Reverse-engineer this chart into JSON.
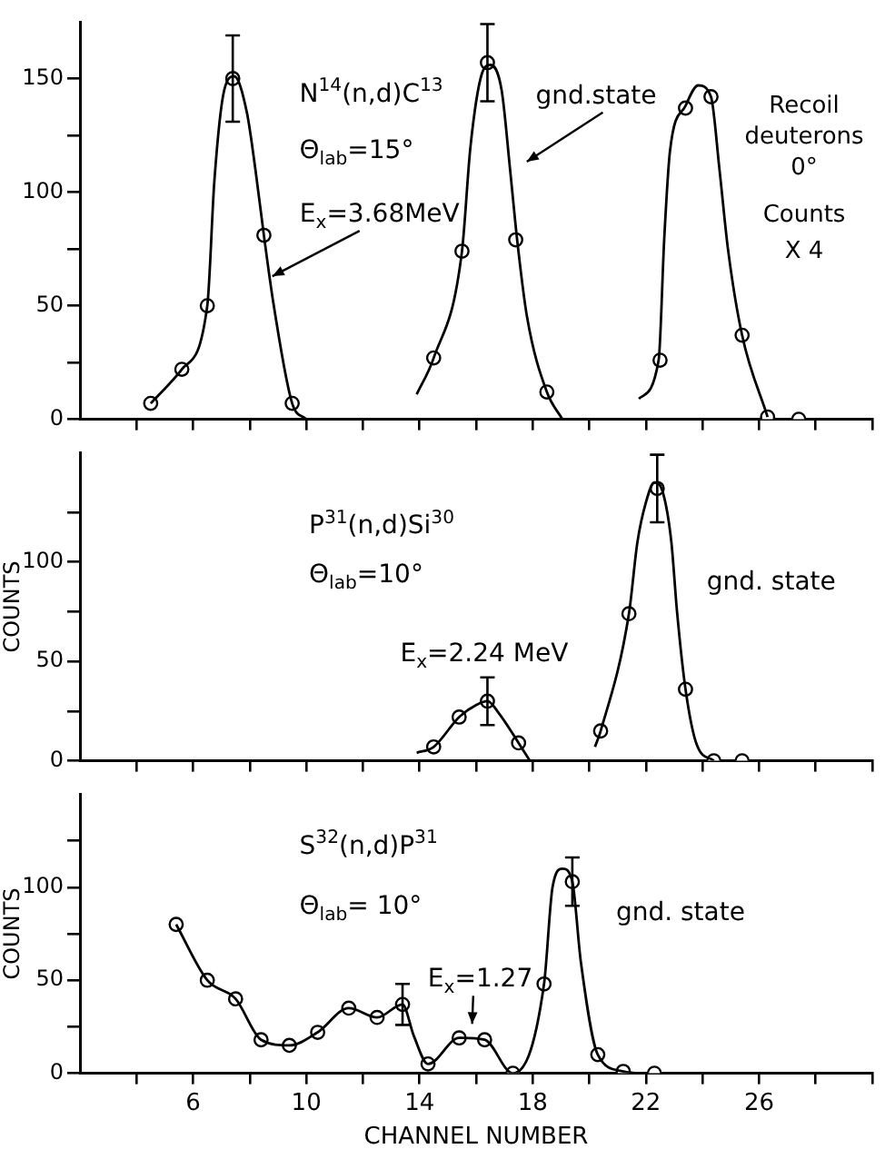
{
  "chart_data": [
    {
      "type": "scatter",
      "xlim": [
        2,
        30
      ],
      "xticks": [
        {
          "value": 4,
          "label": null
        },
        6,
        {
          "value": 8,
          "label": null
        },
        10,
        {
          "value": 12,
          "label": null
        },
        14,
        {
          "value": 16,
          "label": null
        },
        18,
        {
          "value": 20,
          "label": null
        },
        22,
        {
          "value": 24,
          "label": null
        },
        26,
        {
          "value": 28,
          "label": null
        },
        {
          "value": 30,
          "label": null
        }
      ],
      "ylim": [
        0,
        175
      ],
      "yticks": [
        0,
        {
          "value": 25,
          "label": null
        },
        50,
        {
          "value": 75,
          "label": null
        },
        100,
        {
          "value": 125,
          "label": null
        },
        150
      ],
      "tick_labels": "y",
      "series": [
        {
          "type": "line",
          "marker": "none",
          "color": "#000000",
          "x": [
            4.5,
            5.6,
            6.5,
            6.75,
            7.1,
            7.45,
            7.9,
            8.2,
            8.5,
            8.85,
            9.5,
            10.0,
            12,
            13.9,
            14.5,
            15.5,
            15.8,
            16.2,
            16.5,
            16.9,
            17.2,
            17.45,
            17.8,
            18.5,
            19.05,
            20,
            21.75,
            22.45,
            22.65,
            22.85,
            23.4,
            23.85,
            24.3,
            24.6,
            24.9,
            25.4,
            26.3
          ],
          "values": [
            7,
            22,
            50,
            105,
            145,
            151,
            135,
            110,
            81,
            50,
            7,
            0,
            null,
            11,
            27,
            74,
            120,
            152,
            156,
            145,
            110,
            79,
            45,
            12,
            0,
            null,
            9,
            26,
            80,
            118,
            138,
            147,
            142,
            110,
            75,
            37,
            1
          ]
        },
        {
          "type": "scatter",
          "marker": "circle",
          "color": "#000000",
          "x": [
            4.5,
            5.6,
            6.5,
            7.4,
            8.5,
            9.5,
            14.5,
            15.5,
            16.4,
            17.4,
            18.5,
            22.5,
            23.4,
            24.3,
            25.4,
            26.3,
            27.4
          ],
          "values": [
            7,
            22,
            50,
            150,
            81,
            7,
            27,
            74,
            157,
            79,
            12,
            26,
            137,
            142,
            37,
            1,
            0
          ],
          "errors": [
            null,
            null,
            null,
            19,
            null,
            null,
            null,
            null,
            17,
            null,
            null,
            null,
            null,
            null,
            null,
            null,
            null
          ]
        }
      ],
      "annotations": [
        "N$^{14}$(n,d)C$^{13}$",
        "Θ$_{lab}$=15°",
        {
          "text": "E$_{x}$=3.68MeV",
          "x": 8.8,
          "y": 63
        },
        "gnd.state",
        "Recoil\ndeuterons\n0°",
        "Counts\nX 4"
      ]
    },
    {
      "type": "scatter",
      "xlim": [
        2,
        30
      ],
      "xticks": [
        {
          "value": 4,
          "label": null
        },
        6,
        {
          "value": 8,
          "label": null
        },
        10,
        {
          "value": 12,
          "label": null
        },
        14,
        {
          "value": 16,
          "label": null
        },
        18,
        {
          "value": 20,
          "label": null
        },
        22,
        {
          "value": 24,
          "label": null
        },
        26,
        {
          "value": 28,
          "label": null
        },
        {
          "value": 30,
          "label": null
        }
      ],
      "ylim": [
        0,
        155
      ],
      "yticks": [
        0,
        {
          "value": 25,
          "label": null
        },
        50,
        {
          "value": 75,
          "label": null
        },
        100,
        {
          "value": 125,
          "label": null
        }
      ],
      "tick_labels": "y",
      "ylabel": "COUNTS",
      "series": [
        {
          "type": "line",
          "marker": "none",
          "color": "#000000",
          "x": [
            13.9,
            14.5,
            15.4,
            16.0,
            16.4,
            16.8,
            17.5,
            17.9,
            19,
            20.2,
            20.4,
            21.4,
            21.7,
            22.0,
            22.3,
            22.6,
            22.9,
            23.1,
            23.4,
            23.8,
            24.4
          ],
          "values": [
            4,
            7,
            22,
            28,
            30,
            24,
            9,
            0,
            null,
            7,
            15,
            74,
            110,
            130,
            140,
            135,
            110,
            75,
            36,
            8,
            0
          ]
        },
        {
          "type": "scatter",
          "marker": "circle",
          "color": "#000000",
          "x": [
            14.5,
            15.4,
            16.4,
            17.5,
            20.4,
            21.4,
            22.4,
            23.4,
            24.4,
            25.4
          ],
          "values": [
            7,
            22,
            30,
            9,
            15,
            74,
            137,
            36,
            0,
            0
          ],
          "errors": [
            null,
            null,
            12,
            null,
            null,
            null,
            17,
            null,
            null,
            null
          ]
        }
      ],
      "annotations": [
        "P$^{31}$(n,d)Si$^{30}$",
        "Θ$_{lab}$=10°",
        {
          "text": "E$_{x}$=2.24 MeV",
          "x": 16.4,
          "y": 30
        },
        "gnd. state"
      ]
    },
    {
      "type": "scatter",
      "xlim": [
        2,
        30
      ],
      "xticks": [
        {
          "value": 4,
          "label": null
        },
        6,
        {
          "value": 8,
          "label": null
        },
        10,
        {
          "value": 12,
          "label": null
        },
        14,
        {
          "value": 16,
          "label": null
        },
        18,
        {
          "value": 20,
          "label": null
        },
        22,
        {
          "value": 24,
          "label": null
        },
        26,
        {
          "value": 28,
          "label": null
        },
        {
          "value": 30,
          "label": null
        }
      ],
      "ylim": [
        0,
        150
      ],
      "yticks": [
        0,
        {
          "value": 25,
          "label": null
        },
        50,
        {
          "value": 75,
          "label": null
        },
        100,
        {
          "value": 125,
          "label": null
        }
      ],
      "ylabel": "COUNTS",
      "xlabel": "CHANNEL NUMBER",
      "series": [
        {
          "type": "line",
          "marker": "none",
          "color": "#000000",
          "x": [
            5.4,
            6.5,
            7.5,
            8.4,
            9.4,
            10.4,
            11.5,
            12.5,
            13.4,
            13.8,
            14.3,
            15.4,
            16.3,
            17.3,
            18.4,
            18.7,
            19.05,
            19.4,
            19.7,
            20.3,
            21.2,
            21.6
          ],
          "values": [
            80,
            50,
            40,
            18,
            15,
            22,
            35,
            30,
            37,
            20,
            5,
            19,
            18,
            0,
            48,
            100,
            110,
            103,
            60,
            10,
            1,
            0
          ]
        },
        {
          "type": "scatter",
          "marker": "circle",
          "color": "#000000",
          "x": [
            5.4,
            6.5,
            7.5,
            8.4,
            9.4,
            10.4,
            11.5,
            12.5,
            13.4,
            14.3,
            15.4,
            16.3,
            17.3,
            18.4,
            19.4,
            20.3,
            21.2,
            22.3
          ],
          "values": [
            80,
            50,
            40,
            18,
            15,
            22,
            35,
            30,
            37,
            5,
            19,
            18,
            0,
            48,
            103,
            10,
            1,
            0
          ],
          "errors": [
            null,
            null,
            null,
            null,
            null,
            null,
            null,
            null,
            11,
            null,
            null,
            null,
            null,
            null,
            13,
            null,
            null,
            null
          ]
        }
      ],
      "annotations": [
        "S$^{32}$(n,d)P$^{31}$",
        "Θ$_{lab}$= 10°",
        "E$_{x}$=1.27",
        {
          "text": "gnd. state",
          "x": 19.4,
          "y": 103
        }
      ]
    }
  ]
}
